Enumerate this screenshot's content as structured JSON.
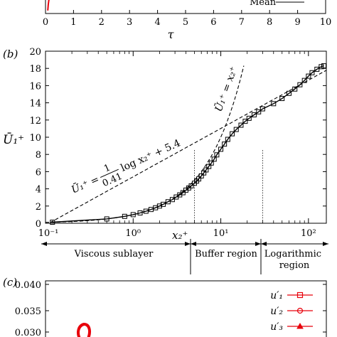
{
  "chart_data": [
    {
      "panel": "(a)",
      "type": "line",
      "xlabel": "τ",
      "xlim": [
        0,
        10
      ],
      "xticks": [
        "0",
        "1",
        "2",
        "3",
        "4",
        "5",
        "6",
        "7",
        "8",
        "9",
        "10"
      ],
      "legend": [
        {
          "name": "Mean",
          "color": "#000000"
        }
      ],
      "series": [
        {
          "name": "",
          "color": "#e8000b",
          "x": [
            0.08,
            0.1,
            0.12,
            0.15
          ],
          "y": [
            0.2,
            0.6,
            0.9,
            1.0
          ]
        }
      ]
    },
    {
      "panel": "(b)",
      "type": "line",
      "xscale": "log",
      "xlim": [
        0.1,
        160
      ],
      "ylim": [
        0,
        20
      ],
      "xlabel": "x₂⁺",
      "ylabel": "Ū₁⁺",
      "yticks": [
        0,
        2,
        4,
        6,
        8,
        10,
        12,
        14,
        16,
        18,
        20
      ],
      "xticks": [
        "10⁻¹",
        "10⁰",
        "10¹",
        "10²"
      ],
      "region_boundaries": [
        5,
        30
      ],
      "regions": [
        "Viscous sublayer",
        "Buffer region",
        "Logarithmic region"
      ],
      "annotations": {
        "log_law_lhs": "Ū₁⁺ =",
        "log_law_num": "1",
        "log_law_den": "0.41",
        "log_law_rest": "log x₂⁺ + 5.4",
        "linear_law": "Ū₁⁺ = x₂⁺"
      },
      "series": [
        {
          "name": "",
          "marker": "square",
          "color": "#000000",
          "x": [
            0.12,
            0.5,
            0.8,
            1.0,
            1.2,
            1.4,
            1.6,
            1.8,
            2.0,
            2.2,
            2.5,
            2.8,
            3.1,
            3.4,
            3.7,
            4.0,
            4.3,
            4.6,
            5.0,
            5.3,
            5.6,
            6.0,
            6.4,
            6.8,
            7.3,
            7.8,
            8.4,
            9.0,
            10.0,
            11.0,
            12.0,
            13.5,
            15.0,
            17.0,
            19.0,
            21.0,
            24.0,
            27.0,
            30.0,
            40.0,
            50.0,
            60.0,
            70.0,
            80.0,
            90.0,
            100.0,
            110.0,
            125.0,
            140.0,
            150.0
          ],
          "y": [
            0.12,
            0.5,
            0.8,
            1.0,
            1.2,
            1.4,
            1.6,
            1.8,
            2.0,
            2.2,
            2.5,
            2.75,
            3.05,
            3.3,
            3.55,
            3.85,
            4.1,
            4.35,
            4.65,
            4.9,
            5.15,
            5.5,
            5.85,
            6.2,
            6.6,
            7.0,
            7.45,
            7.95,
            8.6,
            9.2,
            9.75,
            10.4,
            10.9,
            11.4,
            11.85,
            12.2,
            12.6,
            12.95,
            13.3,
            13.9,
            14.5,
            15.1,
            15.6,
            16.1,
            16.6,
            17.1,
            17.5,
            17.9,
            18.2,
            18.3
          ]
        }
      ]
    },
    {
      "panel": "(c)",
      "type": "line",
      "yticks": [
        "0.040",
        "0.035",
        "0.030"
      ],
      "legend": [
        {
          "name": "u′₁",
          "marker": "square",
          "color": "#e8000b"
        },
        {
          "name": "u′₂",
          "marker": "circle",
          "color": "#e8000b"
        },
        {
          "name": "u′₃",
          "marker": "triangle",
          "color": "#e8000b"
        }
      ]
    }
  ]
}
